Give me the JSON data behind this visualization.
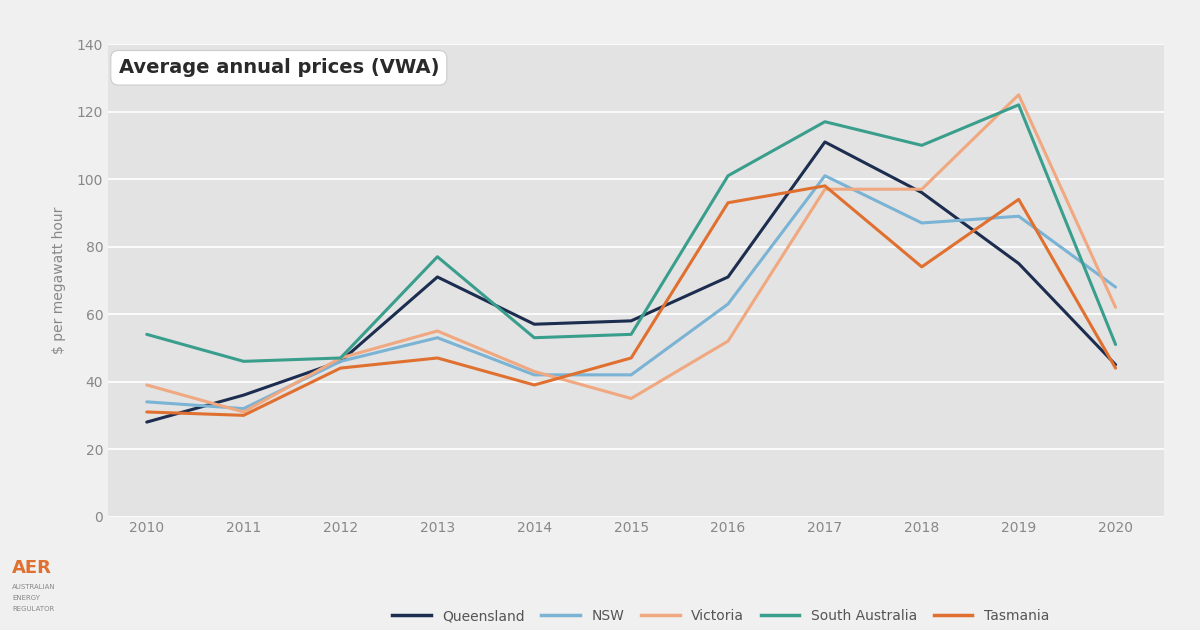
{
  "title": "Average annual prices (VWA)",
  "ylabel": "$ per megawatt hour",
  "years": [
    2010,
    2011,
    2012,
    2013,
    2014,
    2015,
    2016,
    2017,
    2018,
    2019,
    2020
  ],
  "series": {
    "Queensland": {
      "values": [
        28,
        36,
        46,
        71,
        57,
        58,
        71,
        111,
        96,
        75,
        45
      ],
      "color": "#1c2d4f",
      "linewidth": 2.2
    },
    "NSW": {
      "values": [
        34,
        32,
        46,
        53,
        42,
        42,
        63,
        101,
        87,
        89,
        68
      ],
      "color": "#7ab3d4",
      "linewidth": 2.2
    },
    "Victoria": {
      "values": [
        39,
        31,
        47,
        55,
        43,
        35,
        52,
        97,
        97,
        125,
        62
      ],
      "color": "#f0a880",
      "linewidth": 2.2
    },
    "South Australia": {
      "values": [
        54,
        46,
        47,
        77,
        53,
        54,
        101,
        117,
        110,
        122,
        51
      ],
      "color": "#3a9e8d",
      "linewidth": 2.2
    },
    "Tasmania": {
      "values": [
        31,
        30,
        44,
        47,
        39,
        47,
        93,
        98,
        74,
        94,
        44
      ],
      "color": "#e07030",
      "linewidth": 2.2
    }
  },
  "ylim": [
    0,
    140
  ],
  "yticks": [
    0,
    20,
    40,
    60,
    80,
    100,
    120,
    140
  ],
  "fig_bg_color": "#f0f0f0",
  "plot_bg_color": "#e3e3e3",
  "grid_color": "#ffffff",
  "tick_color": "#888888",
  "title_fontsize": 14,
  "axis_label_fontsize": 10,
  "tick_fontsize": 10,
  "legend_fontsize": 10
}
